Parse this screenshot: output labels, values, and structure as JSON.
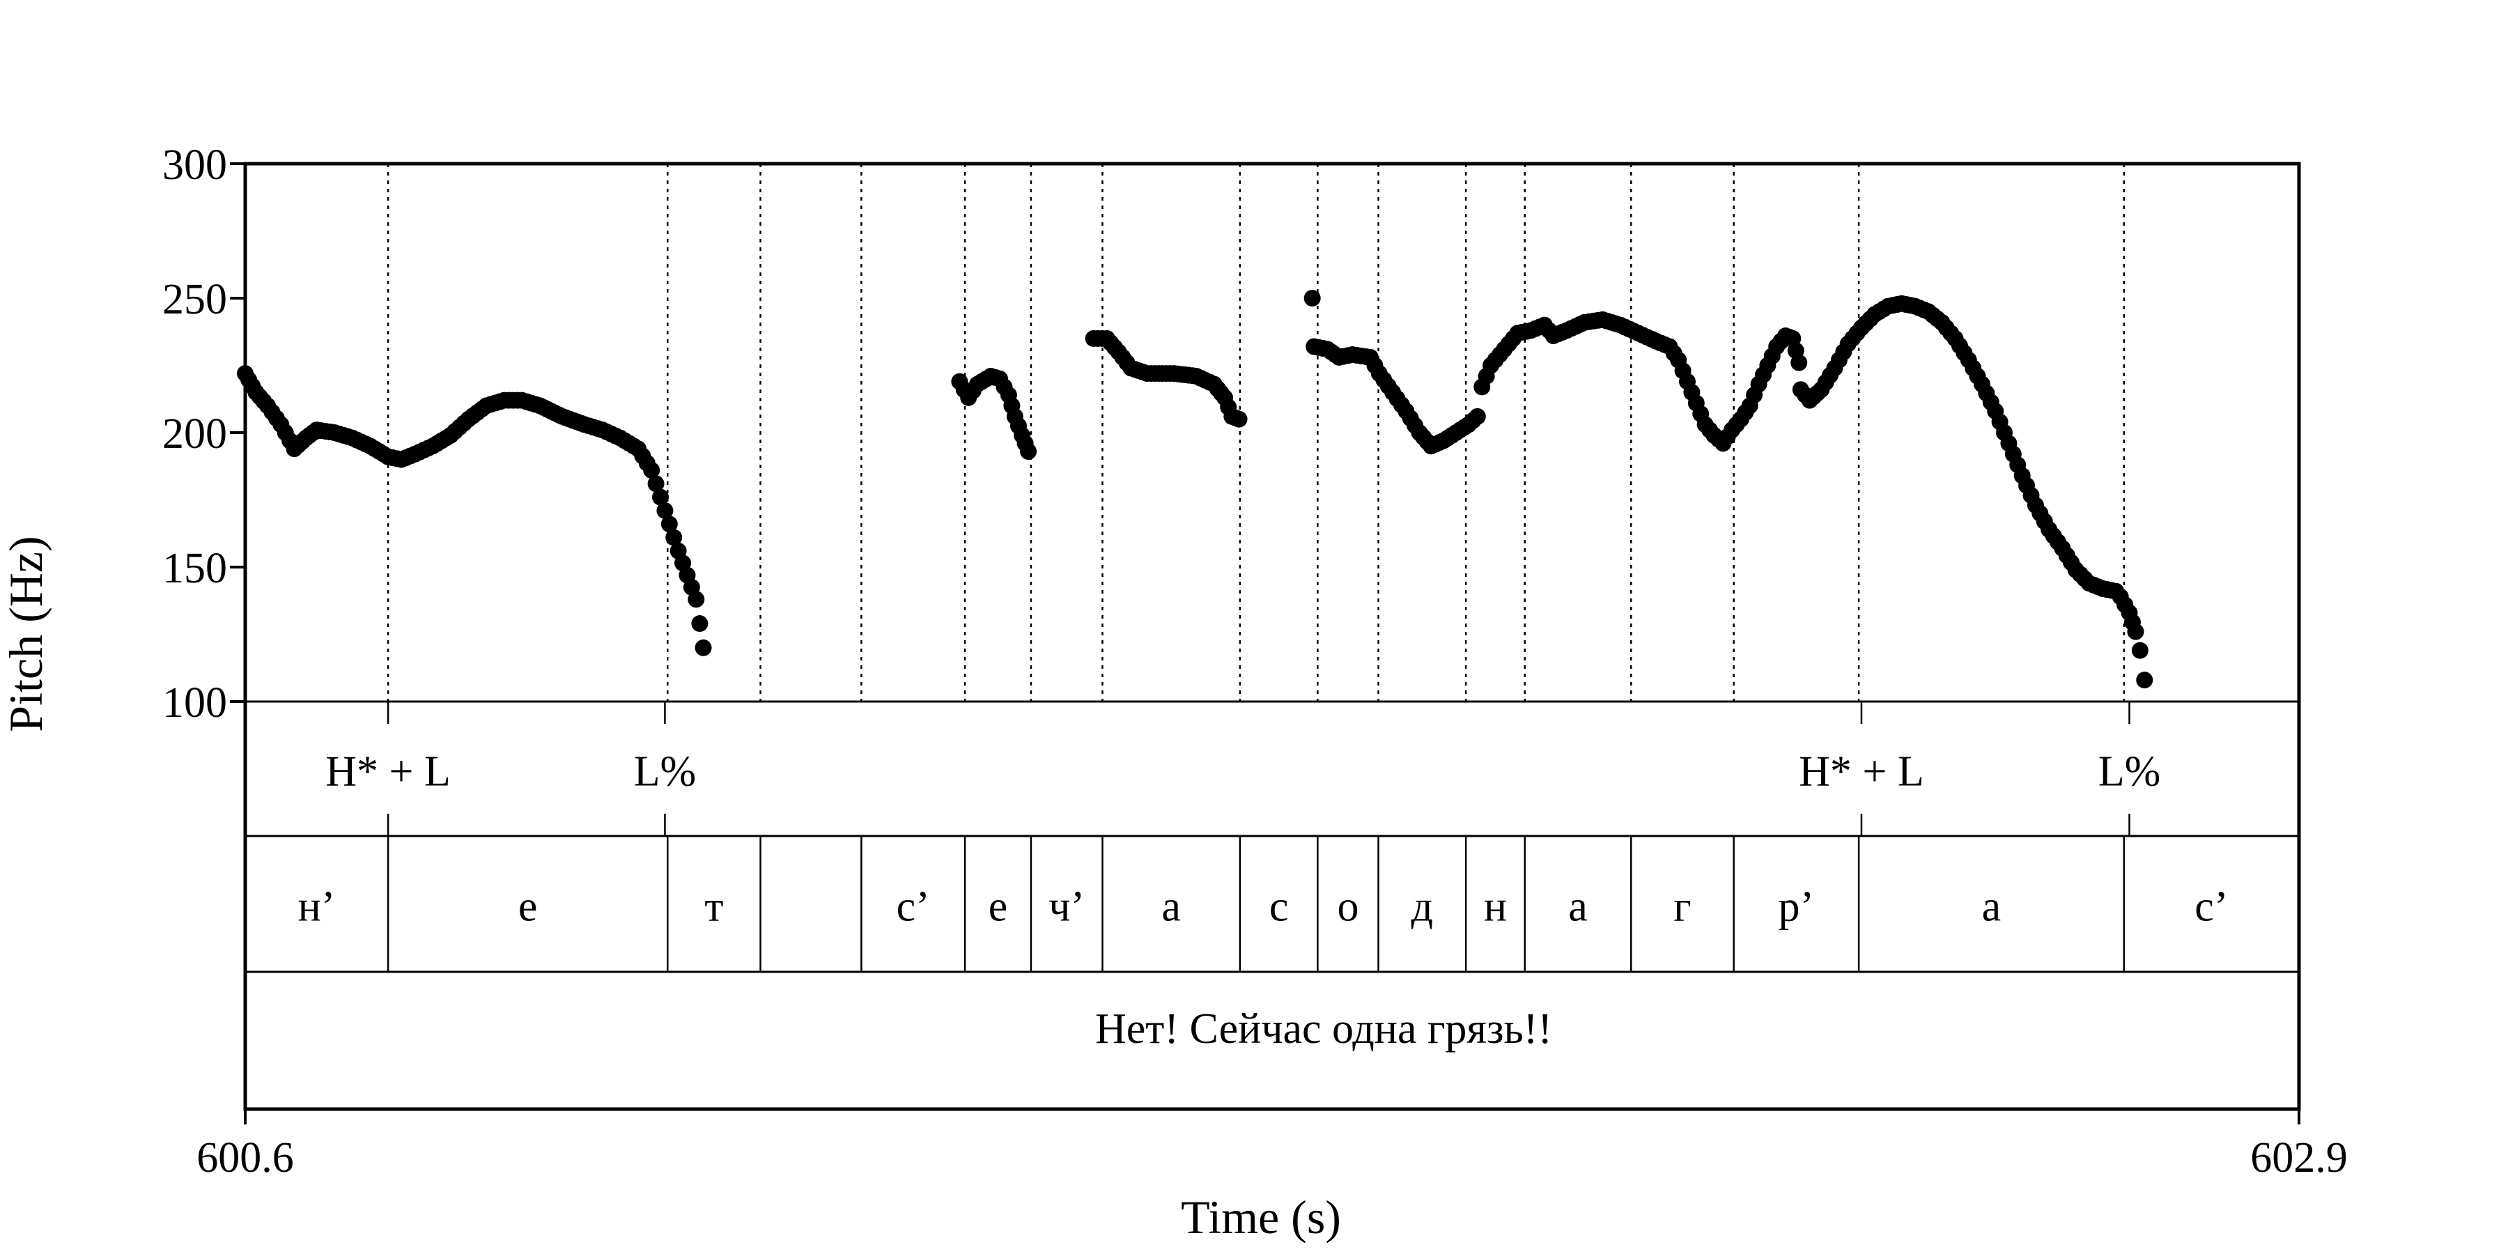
{
  "chart_data": {
    "type": "scatter",
    "title": "",
    "xlabel": "Time (s)",
    "ylabel": "Pitch (Hz)",
    "xlim": [
      600.6,
      602.9
    ],
    "ylim": [
      100,
      300
    ],
    "y_ticks": [
      100,
      150,
      200,
      250,
      300
    ],
    "x_tick_labels": [
      "600.6",
      "602.9"
    ],
    "marker_color": "#000000",
    "pitch_contours": [
      [
        [
          600.6,
          222
        ],
        [
          600.612,
          215
        ],
        [
          600.625,
          210
        ],
        [
          600.64,
          203
        ],
        [
          600.655,
          194
        ],
        [
          600.668,
          198
        ],
        [
          600.68,
          201
        ],
        [
          600.7,
          200
        ],
        [
          600.72,
          198
        ],
        [
          600.74,
          195
        ],
        [
          600.76,
          191
        ],
        [
          600.775,
          190
        ],
        [
          600.79,
          192
        ],
        [
          600.81,
          195
        ],
        [
          600.83,
          199
        ],
        [
          600.85,
          205
        ],
        [
          600.87,
          210
        ],
        [
          600.89,
          212
        ],
        [
          600.91,
          212
        ],
        [
          600.93,
          210
        ],
        [
          600.955,
          206
        ],
        [
          600.98,
          203
        ],
        [
          601.0,
          201
        ],
        [
          601.02,
          198
        ],
        [
          601.04,
          194
        ],
        [
          601.055,
          186
        ],
        [
          601.065,
          176
        ],
        [
          601.075,
          166
        ],
        [
          601.085,
          156
        ],
        [
          601.095,
          147
        ],
        [
          601.105,
          138
        ],
        [
          601.113,
          120
        ]
      ],
      [
        [
          601.4,
          219
        ],
        [
          601.41,
          213
        ],
        [
          601.42,
          218
        ],
        [
          601.435,
          221
        ],
        [
          601.445,
          220
        ],
        [
          601.455,
          214
        ],
        [
          601.462,
          206
        ],
        [
          601.47,
          199
        ],
        [
          601.477,
          193
        ]
      ],
      [
        [
          601.55,
          235
        ],
        [
          601.565,
          235
        ],
        [
          601.578,
          230
        ],
        [
          601.592,
          224
        ],
        [
          601.61,
          222
        ],
        [
          601.64,
          222
        ],
        [
          601.665,
          221
        ],
        [
          601.685,
          218
        ],
        [
          601.697,
          213
        ],
        [
          601.705,
          206
        ],
        [
          601.713,
          205
        ]
      ],
      [
        [
          601.795,
          250
        ]
      ],
      [
        [
          601.797,
          232
        ],
        [
          601.812,
          231
        ],
        [
          601.825,
          228
        ],
        [
          601.84,
          229
        ],
        [
          601.86,
          228
        ],
        [
          601.87,
          222
        ],
        [
          601.885,
          215
        ],
        [
          601.9,
          208
        ],
        [
          601.915,
          200
        ],
        [
          601.928,
          195
        ],
        [
          601.942,
          197
        ],
        [
          601.956,
          200
        ],
        [
          601.97,
          203
        ],
        [
          601.98,
          206
        ],
        [
          601.985,
          217
        ],
        [
          601.995,
          225
        ],
        [
          602.01,
          231
        ],
        [
          602.025,
          237
        ],
        [
          602.04,
          238
        ],
        [
          602.055,
          240
        ],
        [
          602.065,
          236
        ],
        [
          602.08,
          238
        ],
        [
          602.1,
          241
        ],
        [
          602.12,
          242
        ],
        [
          602.14,
          240
        ],
        [
          602.16,
          237
        ],
        [
          602.18,
          234
        ],
        [
          602.195,
          232
        ],
        [
          602.205,
          227
        ],
        [
          602.215,
          219
        ],
        [
          602.225,
          211
        ],
        [
          602.235,
          203
        ],
        [
          602.245,
          199
        ],
        [
          602.255,
          196
        ],
        [
          602.265,
          201
        ],
        [
          602.275,
          205
        ],
        [
          602.285,
          210
        ],
        [
          602.295,
          218
        ],
        [
          602.305,
          225
        ],
        [
          602.315,
          232
        ],
        [
          602.325,
          236
        ],
        [
          602.333,
          235
        ],
        [
          602.34,
          226
        ]
      ],
      [
        [
          602.342,
          216
        ],
        [
          602.352,
          212
        ],
        [
          602.365,
          216
        ],
        [
          602.38,
          224
        ],
        [
          602.395,
          233
        ],
        [
          602.41,
          239
        ],
        [
          602.425,
          244
        ],
        [
          602.44,
          247
        ],
        [
          602.455,
          248
        ],
        [
          602.47,
          247
        ],
        [
          602.485,
          245
        ],
        [
          602.5,
          241
        ],
        [
          602.515,
          235
        ],
        [
          602.53,
          227
        ],
        [
          602.545,
          218
        ],
        [
          602.56,
          208
        ],
        [
          602.575,
          196
        ],
        [
          602.59,
          184
        ],
        [
          602.605,
          173
        ],
        [
          602.62,
          164
        ],
        [
          602.635,
          157
        ],
        [
          602.65,
          149
        ],
        [
          602.665,
          144
        ],
        [
          602.68,
          142
        ],
        [
          602.695,
          141
        ],
        [
          602.7,
          139
        ],
        [
          602.71,
          133
        ],
        [
          602.717,
          126
        ],
        [
          602.722,
          119
        ],
        [
          602.727,
          108
        ]
      ]
    ],
    "tones": [
      {
        "label": "H* + L",
        "time": 600.76
      },
      {
        "label": "L%",
        "time": 601.07
      },
      {
        "label": "H* + L",
        "time": 602.41
      },
      {
        "label": "L%",
        "time": 602.71
      }
    ],
    "segments": [
      {
        "label": "н’",
        "start": 600.6,
        "end": 600.76
      },
      {
        "label": "е",
        "start": 600.76,
        "end": 601.073
      },
      {
        "label": "т",
        "start": 601.073,
        "end": 601.177
      },
      {
        "label": "",
        "start": 601.177,
        "end": 601.29
      },
      {
        "label": "с’",
        "start": 601.29,
        "end": 601.406
      },
      {
        "label": "е",
        "start": 601.406,
        "end": 601.48
      },
      {
        "label": "ч’",
        "start": 601.48,
        "end": 601.56
      },
      {
        "label": "а",
        "start": 601.56,
        "end": 601.714
      },
      {
        "label": "с",
        "start": 601.714,
        "end": 601.801
      },
      {
        "label": "о",
        "start": 601.801,
        "end": 601.869
      },
      {
        "label": "д",
        "start": 601.869,
        "end": 601.967
      },
      {
        "label": "н",
        "start": 601.967,
        "end": 602.033
      },
      {
        "label": "а",
        "start": 602.033,
        "end": 602.152
      },
      {
        "label": "г",
        "start": 602.152,
        "end": 602.267
      },
      {
        "label": "р’",
        "start": 602.267,
        "end": 602.407
      },
      {
        "label": "а",
        "start": 602.407,
        "end": 602.704
      },
      {
        "label": "с’",
        "start": 602.704,
        "end": 602.9
      }
    ],
    "sentence": "Нет! Сейчас одна грязь!!"
  }
}
